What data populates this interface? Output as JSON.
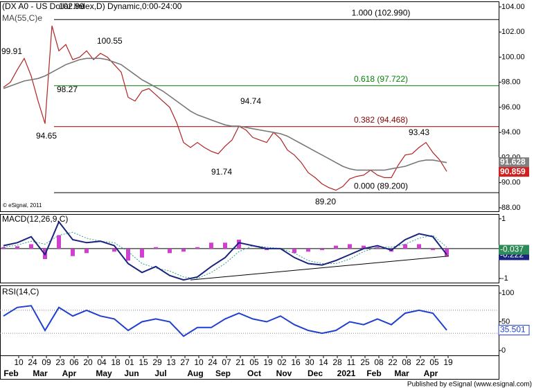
{
  "chart_data": {
    "type": "financial",
    "title": "(DX A0 - US Dollar Index,D) Dynamic,0:00-24:00",
    "ma_label": "MA(55,C)e",
    "copyright": "© eSignal, 2011",
    "publisher": "Published by eSignal (www.esignal.com)",
    "xlim": [
      -1.35,
      34.65
    ],
    "xticks": [
      {
        "value": 0,
        "label": "10"
      },
      {
        "value": 1,
        "label": "24"
      },
      {
        "value": 2,
        "label": "09"
      },
      {
        "value": 3,
        "label": "23"
      },
      {
        "value": 4,
        "label": "06"
      },
      {
        "value": 5,
        "label": "20"
      },
      {
        "value": 6,
        "label": "04"
      },
      {
        "value": 7,
        "label": "18"
      },
      {
        "value": 8,
        "label": "01"
      },
      {
        "value": 9,
        "label": "15"
      },
      {
        "value": 10,
        "label": "29"
      },
      {
        "value": 11,
        "label": "13"
      },
      {
        "value": 12,
        "label": "27"
      },
      {
        "value": 13,
        "label": "10"
      },
      {
        "value": 14,
        "label": "24"
      },
      {
        "value": 15,
        "label": "07"
      },
      {
        "value": 16,
        "label": "21"
      },
      {
        "value": 17,
        "label": "05"
      },
      {
        "value": 18,
        "label": "19"
      },
      {
        "value": 19,
        "label": "02"
      },
      {
        "value": 20,
        "label": "16"
      },
      {
        "value": 21,
        "label": "30"
      },
      {
        "value": 22,
        "label": "14"
      },
      {
        "value": 23,
        "label": "28"
      },
      {
        "value": 24,
        "label": "11"
      },
      {
        "value": 25,
        "label": "25"
      },
      {
        "value": 26,
        "label": "08"
      },
      {
        "value": 27,
        "label": "22"
      },
      {
        "value": 28,
        "label": "08"
      },
      {
        "value": 29,
        "label": "22"
      },
      {
        "value": 30,
        "label": "05"
      },
      {
        "value": 31,
        "label": "19"
      }
    ],
    "months": [
      {
        "value": -0.55,
        "label": "Feb"
      },
      {
        "value": 1.55,
        "label": "Mar"
      },
      {
        "value": 3.65,
        "label": "Apr"
      },
      {
        "value": 6.15,
        "label": "May"
      },
      {
        "value": 8.15,
        "label": "Jun"
      },
      {
        "value": 10.25,
        "label": "Jul"
      },
      {
        "value": 12.75,
        "label": "Aug"
      },
      {
        "value": 14.75,
        "label": "Sep"
      },
      {
        "value": 17,
        "label": "Oct"
      },
      {
        "value": 19.15,
        "label": "Nov"
      },
      {
        "value": 21.4,
        "label": "Dec"
      },
      {
        "value": 23.65,
        "label": "2021"
      },
      {
        "value": 25.65,
        "label": "Feb"
      },
      {
        "value": 27.65,
        "label": "Mar"
      },
      {
        "value": 29.75,
        "label": "Apr"
      }
    ],
    "price": {
      "ylim": [
        87.72,
        104.44
      ],
      "yticks": [
        {
          "value": 104,
          "label": "104.00"
        },
        {
          "value": 102,
          "label": "102.00"
        },
        {
          "value": 100,
          "label": "100.00"
        },
        {
          "value": 98,
          "label": "98.00"
        },
        {
          "value": 96,
          "label": "96.00"
        },
        {
          "value": 94,
          "label": "94.00"
        },
        {
          "value": 92,
          "label": "92.00"
        },
        {
          "value": 90,
          "label": "90.00"
        },
        {
          "value": 88,
          "label": "88.00"
        }
      ],
      "x": [
        -1.1,
        -0.6,
        -0.1,
        0.4,
        0.9,
        1.4,
        1.9,
        2.4,
        2.9,
        3.4,
        3.9,
        4.4,
        4.9,
        5.4,
        5.9,
        6.4,
        6.9,
        7.4,
        7.9,
        8.4,
        8.9,
        9.4,
        9.9,
        10.4,
        10.9,
        11.4,
        11.9,
        12.4,
        12.9,
        13.4,
        13.9,
        14.4,
        14.9,
        15.4,
        15.9,
        16.4,
        16.9,
        17.4,
        17.9,
        18.4,
        18.9,
        19.4,
        19.9,
        20.4,
        20.9,
        21.4,
        21.9,
        22.4,
        22.9,
        23.4,
        23.9,
        24.4,
        24.9,
        25.4,
        25.9,
        26.4,
        26.9,
        27.4,
        27.9,
        28.4,
        28.9,
        29.4,
        29.9,
        30.4,
        30.9
      ],
      "series": [
        {
          "name": "price",
          "color": "#b22222",
          "values": [
            97.6,
            98.0,
            99.0,
            99.9,
            98.5,
            96.5,
            94.7,
            102.5,
            100.5,
            101.0,
            99.8,
            100.0,
            100.5,
            99.8,
            100.3,
            100.0,
            99.4,
            98.8,
            96.8,
            96.5,
            97.3,
            97.5,
            97.0,
            96.5,
            96.0,
            94.8,
            93.2,
            92.8,
            93.2,
            92.8,
            92.5,
            92.3,
            92.9,
            93.4,
            94.5,
            94.2,
            93.6,
            93.4,
            93.2,
            94.0,
            93.5,
            92.6,
            92.2,
            91.6,
            90.8,
            90.4,
            89.9,
            89.6,
            89.4,
            89.7,
            90.3,
            90.5,
            90.6,
            91.0,
            90.6,
            90.4,
            90.4,
            91.4,
            92.2,
            92.3,
            92.8,
            93.2,
            92.4,
            91.8,
            90.9
          ]
        },
        {
          "name": "MA(55,C)e",
          "color": "#777777",
          "values": [
            97.5,
            97.7,
            97.9,
            98.1,
            98.2,
            98.3,
            98.5,
            98.8,
            99.1,
            99.4,
            99.6,
            99.8,
            99.9,
            99.9,
            99.9,
            99.8,
            99.6,
            99.4,
            99.0,
            98.6,
            98.2,
            97.9,
            97.6,
            97.3,
            96.9,
            96.5,
            96.1,
            95.7,
            95.4,
            95.2,
            95.0,
            94.8,
            94.6,
            94.5,
            94.5,
            94.4,
            94.3,
            94.2,
            94.1,
            94.0,
            93.9,
            93.7,
            93.4,
            93.1,
            92.8,
            92.5,
            92.2,
            91.9,
            91.6,
            91.3,
            91.1,
            91.0,
            91.0,
            91.0,
            91.0,
            91.0,
            91.1,
            91.2,
            91.3,
            91.5,
            91.7,
            91.8,
            91.8,
            91.7,
            91.6
          ]
        }
      ],
      "levels": [
        {
          "value": 102.99,
          "label": "1.000 (102.990)",
          "color": "#000000"
        },
        {
          "value": 97.722,
          "label": "0.618 (97.722)",
          "color": "#008000"
        },
        {
          "value": 94.468,
          "label": "0.382 (94.468)",
          "color": "#8b0000"
        },
        {
          "value": 89.2,
          "label": "0.000 (89.200)",
          "color": "#000000"
        }
      ],
      "levels_start": 2.55,
      "annotations": [
        {
          "label": "99.91",
          "value": 99.91
        },
        {
          "label": "102.99",
          "value": 102.99
        },
        {
          "label": "100.55",
          "value": 100.55
        },
        {
          "label": "98.27",
          "value": 98.27
        },
        {
          "label": "94.65",
          "value": 94.65
        },
        {
          "label": "94.74",
          "value": 94.74
        },
        {
          "label": "91.74",
          "value": 91.74
        },
        {
          "label": "89.20",
          "value": 89.2
        },
        {
          "label": "93.43",
          "value": 93.43
        }
      ],
      "tags": [
        {
          "value": 91.628,
          "label": "91.628",
          "color": "#808080"
        },
        {
          "value": 90.859,
          "label": "90.859",
          "color": "#d02020"
        }
      ]
    },
    "macd": {
      "title": "MACD(12,26,9,C)",
      "ylim": [
        -1.14,
        1.16
      ],
      "yticks": [
        1,
        -1
      ],
      "x": [
        -1.1,
        -0.1,
        0.9,
        1.9,
        2.9,
        3.9,
        4.9,
        5.9,
        6.9,
        7.9,
        8.9,
        9.9,
        10.9,
        11.9,
        12.9,
        13.9,
        14.9,
        15.9,
        16.9,
        17.9,
        18.9,
        19.9,
        20.9,
        21.9,
        22.9,
        23.9,
        24.9,
        25.9,
        26.9,
        27.9,
        28.9,
        29.9,
        30.9
      ],
      "histogram": {
        "color": "#d040d0",
        "values": [
          0.05,
          0.08,
          0.15,
          -0.35,
          0.45,
          -0.25,
          -0.15,
          0,
          -0.1,
          -0.4,
          -0.3,
          0.05,
          -0.15,
          -0.1,
          0.05,
          0.2,
          0.2,
          0.3,
          0,
          -0.05,
          0,
          -0.15,
          -0.1,
          -0.05,
          0.1,
          0.15,
          0.1,
          0.05,
          -0.1,
          0.15,
          0.15,
          -0.05,
          -0.25
        ]
      },
      "macd_line": {
        "color": "#1a237e",
        "values": [
          0.1,
          0.2,
          0.4,
          -0.2,
          0.9,
          0.3,
          0.2,
          0.25,
          0.1,
          -0.5,
          -0.8,
          -0.6,
          -0.9,
          -1.05,
          -0.95,
          -0.6,
          -0.3,
          0.2,
          0.1,
          0.0,
          0.0,
          -0.3,
          -0.5,
          -0.55,
          -0.4,
          -0.2,
          0.0,
          0.1,
          -0.05,
          0.3,
          0.5,
          0.4,
          -0.2
        ]
      },
      "signal": {
        "color": "#2a9d8f",
        "values": [
          0.05,
          0.12,
          0.25,
          0.15,
          0.45,
          0.55,
          0.35,
          0.25,
          0.2,
          -0.1,
          -0.5,
          -0.65,
          -0.75,
          -0.95,
          -1.0,
          -0.8,
          -0.5,
          -0.1,
          0.1,
          0.05,
          0.0,
          -0.15,
          -0.4,
          -0.5,
          -0.5,
          -0.35,
          -0.1,
          0.05,
          0.05,
          0.15,
          0.35,
          0.45,
          0.05
        ]
      },
      "trendline": {
        "x": [
          12.4,
          31.05
        ],
        "values": [
          -1.05,
          -0.25
        ]
      },
      "tags": [
        {
          "value": -0.222,
          "label": "-0.222",
          "color": "#1a237e"
        },
        {
          "value": -0.037,
          "label": "-0.037",
          "color": "#2e8b57"
        }
      ]
    },
    "rsi": {
      "title": "RSI(14,C)",
      "ylim": [
        -8.4,
        113.3
      ],
      "yticks": [
        100,
        50,
        0
      ],
      "levels": [
        70,
        30
      ],
      "color": "#1f3fd0",
      "x": [
        -1.1,
        -0.1,
        0.9,
        1.9,
        2.9,
        3.9,
        4.9,
        5.9,
        6.9,
        7.9,
        8.9,
        9.9,
        10.9,
        11.9,
        12.9,
        13.9,
        14.9,
        15.9,
        16.9,
        17.9,
        18.9,
        19.9,
        20.9,
        21.9,
        22.9,
        23.9,
        24.9,
        25.9,
        26.9,
        27.9,
        28.9,
        29.9,
        30.9
      ],
      "values": [
        60,
        75,
        78,
        35,
        75,
        60,
        70,
        60,
        55,
        35,
        50,
        55,
        50,
        25,
        40,
        40,
        55,
        65,
        55,
        50,
        60,
        45,
        35,
        30,
        35,
        50,
        45,
        55,
        45,
        65,
        70,
        65,
        35.5
      ],
      "tag": {
        "value": 35.501,
        "label": "35.501"
      }
    }
  }
}
